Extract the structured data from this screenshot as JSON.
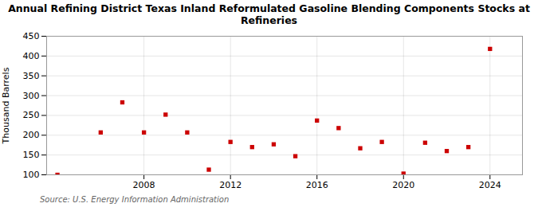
{
  "chart_data": {
    "type": "scatter",
    "title": "Annual Refining District Texas Inland Reformulated Gasoline Blending Components Stocks at\nRefineries",
    "ylabel": "Thousand Barrels",
    "source": "Source: U.S. Energy Information Administration",
    "x": [
      2004,
      2006,
      2007,
      2008,
      2009,
      2010,
      2011,
      2012,
      2013,
      2014,
      2015,
      2016,
      2017,
      2018,
      2019,
      2020,
      2021,
      2022,
      2023,
      2024
    ],
    "values": [
      100,
      207,
      283,
      207,
      252,
      207,
      113,
      183,
      170,
      177,
      147,
      237,
      218,
      167,
      183,
      103,
      181,
      160,
      170,
      418
    ],
    "color": "#cc0000",
    "marker": "square",
    "xlim": [
      2003.5,
      2025.5
    ],
    "ylim": [
      100,
      450
    ],
    "xticks": [
      2008,
      2012,
      2016,
      2020,
      2024
    ],
    "yticks": [
      100,
      150,
      200,
      250,
      300,
      350,
      400,
      450
    ],
    "grid": true
  }
}
